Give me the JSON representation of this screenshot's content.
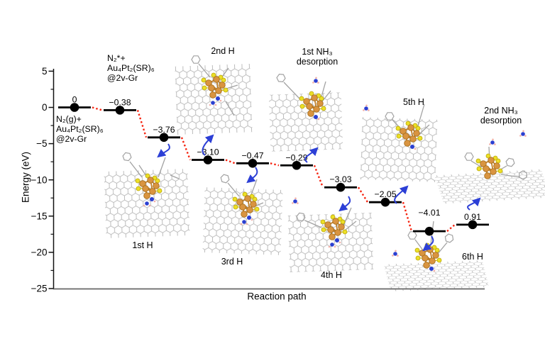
{
  "chart_data": {
    "type": "line",
    "variant": "energy-step-diagram",
    "title": "",
    "xlabel": "Reaction path",
    "ylabel": "Energy (eV)",
    "ylim": [
      -25,
      5
    ],
    "yticks": [
      5,
      0,
      -5,
      -10,
      -15,
      -20,
      -25
    ],
    "minor_ytick_step": 2.5,
    "grid": false,
    "legend": false,
    "levels": [
      {
        "name": "N₂(g)+Au₄Pt₂(SR)₆@2v-Gr",
        "label": "0",
        "step_energy_eV": 0,
        "energy_eV": 0
      },
      {
        "name": "N₂*+Au₄Pt₂(SR)₆@2v-Gr",
        "label": "−0.38",
        "step_energy_eV": -0.38,
        "energy_eV": -0.38
      },
      {
        "name": "1st H",
        "label": "−3.76",
        "step_energy_eV": -3.76,
        "energy_eV": -4.14
      },
      {
        "name": "2nd H",
        "label": "−3.10",
        "step_energy_eV": -3.1,
        "energy_eV": -7.24
      },
      {
        "name": "3rd H",
        "label": "−0.47",
        "step_energy_eV": -0.47,
        "energy_eV": -7.71
      },
      {
        "name": "1st NH₃ desorption",
        "label": "−0.29",
        "step_energy_eV": -0.29,
        "energy_eV": -8.0
      },
      {
        "name": "4th H",
        "label": "−3.03",
        "step_energy_eV": -3.03,
        "energy_eV": -11.03
      },
      {
        "name": "5th H",
        "label": "−2.05",
        "step_energy_eV": -2.05,
        "energy_eV": -13.08
      },
      {
        "name": "6th H",
        "label": "−4.01",
        "step_energy_eV": -4.01,
        "energy_eV": -17.09
      },
      {
        "name": "2nd NH₃ desorption",
        "label": "0.91",
        "step_energy_eV": 0.91,
        "energy_eV": -16.18
      }
    ],
    "annotations": {
      "initial_state_lines": [
        "N₂(g)+",
        "Au₄Pt₂(SR)₆",
        "@2v-Gr"
      ],
      "adsorbed_state_lines": [
        "N₂*+",
        "Au₄Pt₂(SR)₆",
        "@2v-Gr"
      ]
    },
    "inset_labels": {
      "first_h": "1st H",
      "second_h": "2nd H",
      "third_h": "3rd H",
      "fourth_h": "4th H",
      "fifth_h": "5th H",
      "sixth_h": "6th H",
      "first_nh3_line1": "1st NH₃",
      "first_nh3_line2": "desorption",
      "second_nh3_line1": "2nd NH₃",
      "second_nh3_line2": "desorption"
    },
    "colors": {
      "level_line": "#000000",
      "connector_dotted": "#f5220e",
      "arrow_blue": "#2c3fd6",
      "gold_cluster": "#d99440",
      "sulfur": "#ecdf26",
      "nitrogen": "#2b3fd1",
      "hydrogen": "#f2b0a8",
      "graphene_gray": "#b6b6b6"
    }
  }
}
